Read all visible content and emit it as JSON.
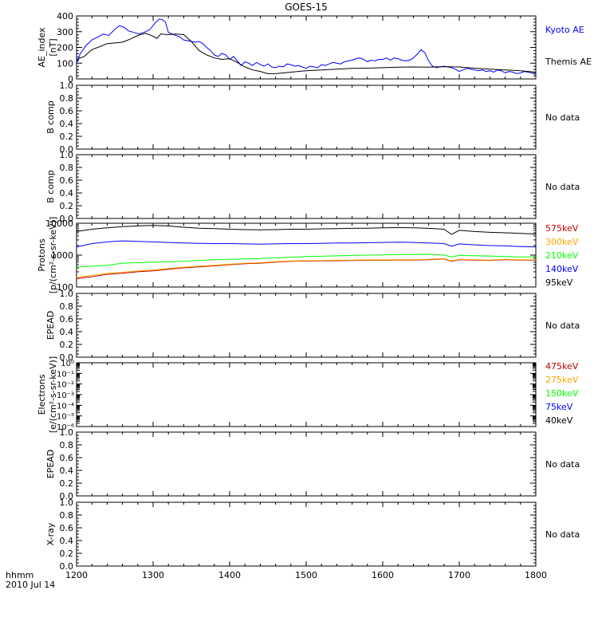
{
  "title": "GOES-15",
  "x_axis": {
    "tick_labels": [
      "1200",
      "1300",
      "1400",
      "1500",
      "1600",
      "1700",
      "1800"
    ],
    "corner_label_1": "hhmm",
    "corner_label_2": "2010 Jul 14"
  },
  "colors": {
    "axes": "#000000",
    "blue": "#0000ff",
    "black": "#000000",
    "green": "#00ff00",
    "orange": "#ffa500",
    "darkred": "#c00000"
  },
  "chart_data": [
    {
      "type": "line",
      "panel": "ae-index",
      "ylabel_line1": "AE_index",
      "ylabel_line2": "[nT]",
      "ylim": [
        0,
        420
      ],
      "yticks": [
        "0",
        "100",
        "200",
        "300",
        "400"
      ],
      "xlim": [
        1200,
        1800
      ],
      "series": [
        {
          "name": "Kyoto AE",
          "color": "#0000ff",
          "x": [
            1200,
            1205,
            1212,
            1220,
            1228,
            1235,
            1242,
            1250,
            1256,
            1262,
            1268,
            1275,
            1282,
            1290,
            1296,
            1302,
            1308,
            1312,
            1316,
            1320,
            1325,
            1330,
            1335,
            1340,
            1345,
            1350,
            1355,
            1360,
            1365,
            1370,
            1375,
            1380,
            1385,
            1390,
            1395,
            1400,
            1405,
            1410,
            1415,
            1420,
            1425,
            1430,
            1435,
            1440,
            1445,
            1450,
            1455,
            1460,
            1465,
            1470,
            1475,
            1480,
            1485,
            1490,
            1495,
            1500,
            1505,
            1510,
            1515,
            1520,
            1525,
            1530,
            1535,
            1540,
            1545,
            1550,
            1555,
            1560,
            1565,
            1570,
            1575,
            1580,
            1585,
            1590,
            1595,
            1600,
            1605,
            1610,
            1615,
            1620,
            1625,
            1630,
            1635,
            1640,
            1645,
            1650,
            1655,
            1660,
            1665,
            1670,
            1675,
            1680,
            1685,
            1690,
            1695,
            1700,
            1705,
            1710,
            1715,
            1720,
            1725,
            1730,
            1735,
            1740,
            1745,
            1750,
            1755,
            1760,
            1765,
            1770,
            1775,
            1780,
            1785,
            1790,
            1795,
            1800
          ],
          "values": [
            100,
            170,
            220,
            260,
            280,
            300,
            290,
            330,
            355,
            345,
            320,
            310,
            300,
            315,
            330,
            370,
            400,
            395,
            380,
            310,
            300,
            290,
            280,
            260,
            255,
            250,
            245,
            250,
            235,
            210,
            190,
            160,
            150,
            170,
            160,
            130,
            150,
            120,
            90,
            115,
            105,
            90,
            110,
            95,
            85,
            100,
            80,
            75,
            85,
            80,
            100,
            95,
            85,
            90,
            80,
            70,
            85,
            80,
            75,
            95,
            90,
            100,
            110,
            105,
            100,
            115,
            120,
            125,
            135,
            140,
            130,
            115,
            125,
            120,
            130,
            130,
            140,
            125,
            140,
            135,
            125,
            120,
            125,
            140,
            165,
            195,
            175,
            120,
            85,
            75,
            80,
            85,
            80,
            75,
            65,
            50,
            60,
            70,
            65,
            60,
            55,
            60,
            50,
            55,
            45,
            60,
            55,
            40,
            50,
            45,
            35,
            40,
            50,
            45,
            40,
            30
          ]
        },
        {
          "name": "Themis AE",
          "color": "#000000",
          "x": [
            1200,
            1210,
            1220,
            1230,
            1240,
            1250,
            1260,
            1270,
            1280,
            1290,
            1300,
            1305,
            1310,
            1320,
            1330,
            1340,
            1350,
            1360,
            1370,
            1380,
            1390,
            1400,
            1410,
            1420,
            1430,
            1440,
            1450,
            1460,
            1480,
            1500,
            1520,
            1540,
            1560,
            1580,
            1600,
            1620,
            1640,
            1660,
            1680,
            1700,
            1720,
            1740,
            1760,
            1780,
            1800
          ],
          "values": [
            130,
            150,
            195,
            215,
            235,
            240,
            245,
            265,
            290,
            305,
            285,
            270,
            300,
            295,
            300,
            295,
            250,
            190,
            160,
            140,
            130,
            135,
            110,
            80,
            60,
            50,
            35,
            35,
            45,
            55,
            60,
            65,
            70,
            72,
            75,
            78,
            80,
            78,
            82,
            80,
            72,
            65,
            60,
            55,
            45
          ]
        }
      ]
    },
    {
      "type": "line",
      "panel": "b-comp-1",
      "ylabel_line1": "B comp",
      "ylim": [
        0,
        1
      ],
      "yticks": [
        "0.0",
        "0.2",
        "0.4",
        "0.6",
        "0.8",
        "1.0"
      ],
      "status": "No data",
      "series": []
    },
    {
      "type": "line",
      "panel": "b-comp-2",
      "ylabel_line1": "B comp",
      "ylim": [
        0,
        1
      ],
      "yticks": [
        "0.0",
        "0.2",
        "0.4",
        "0.6",
        "0.8",
        "1.0"
      ],
      "status": "No data",
      "series": []
    },
    {
      "type": "line",
      "panel": "protons",
      "ylabel_line1": "Protons",
      "ylabel_line2": "[p/(cm²-s-sr-keV)]",
      "ylim": [
        100,
        10000
      ],
      "log_scale": true,
      "yticks": [
        "100",
        "1000",
        "10000"
      ],
      "xlim": [
        1200,
        1800
      ],
      "series": [
        {
          "name": "575keV",
          "color": "#c00000",
          "x": [
            1200,
            1210,
            1220,
            1230,
            1240,
            1260,
            1280,
            1300,
            1320,
            1340,
            1360,
            1380,
            1400,
            1420,
            1440,
            1460,
            1480,
            1500,
            1520,
            1540,
            1560,
            1580,
            1600,
            1620,
            1640,
            1660,
            1680,
            1690,
            1700,
            1720,
            1740,
            1760,
            1780,
            1800
          ],
          "values": [
            180,
            200,
            210,
            230,
            250,
            270,
            300,
            320,
            360,
            400,
            430,
            460,
            500,
            540,
            560,
            600,
            640,
            650,
            660,
            670,
            680,
            690,
            690,
            700,
            700,
            720,
            760,
            640,
            720,
            700,
            680,
            720,
            700,
            700
          ]
        },
        {
          "name": "300keV",
          "color": "#ffa500",
          "x": [
            1200,
            1210,
            1220,
            1230,
            1240,
            1260,
            1280,
            1300,
            1320,
            1340,
            1360,
            1380,
            1400,
            1420,
            1440,
            1460,
            1480,
            1500,
            1520,
            1540,
            1560,
            1580,
            1600,
            1620,
            1640,
            1660,
            1680,
            1690,
            1700,
            1720,
            1740,
            1760,
            1780,
            1800
          ],
          "values": [
            200,
            215,
            230,
            250,
            270,
            290,
            320,
            340,
            380,
            420,
            450,
            480,
            520,
            560,
            580,
            620,
            660,
            670,
            680,
            690,
            700,
            710,
            710,
            720,
            720,
            740,
            780,
            660,
            740,
            720,
            700,
            740,
            720,
            720
          ]
        },
        {
          "name": "210keV",
          "color": "#00ff00",
          "x": [
            1200,
            1220,
            1240,
            1260,
            1280,
            1300,
            1320,
            1340,
            1360,
            1380,
            1400,
            1420,
            1440,
            1460,
            1480,
            1500,
            1520,
            1540,
            1560,
            1580,
            1600,
            1620,
            1640,
            1660,
            1680,
            1690,
            1700,
            1720,
            1740,
            1760,
            1780,
            1800
          ],
          "values": [
            420,
            450,
            480,
            560,
            580,
            600,
            620,
            640,
            680,
            720,
            740,
            760,
            780,
            820,
            860,
            900,
            920,
            950,
            980,
            1000,
            1020,
            1040,
            1050,
            1060,
            1000,
            880,
            980,
            960,
            940,
            900,
            880,
            880
          ]
        },
        {
          "name": "140keV",
          "color": "#0000ff",
          "x": [
            1200,
            1220,
            1240,
            1260,
            1280,
            1300,
            1320,
            1340,
            1360,
            1380,
            1400,
            1420,
            1440,
            1460,
            1480,
            1500,
            1520,
            1540,
            1560,
            1580,
            1600,
            1620,
            1640,
            1660,
            1680,
            1690,
            1700,
            1720,
            1740,
            1760,
            1780,
            1800
          ],
          "values": [
            1800,
            2300,
            2600,
            2800,
            2700,
            2600,
            2500,
            2400,
            2350,
            2300,
            2300,
            2250,
            2200,
            2250,
            2300,
            2300,
            2350,
            2400,
            2400,
            2450,
            2500,
            2550,
            2500,
            2400,
            2300,
            1900,
            2250,
            2100,
            2000,
            1950,
            1850,
            1800
          ]
        },
        {
          "name": "95keV",
          "color": "#000000",
          "x": [
            1200,
            1220,
            1240,
            1260,
            1280,
            1300,
            1320,
            1340,
            1360,
            1380,
            1400,
            1420,
            1440,
            1460,
            1480,
            1500,
            1520,
            1540,
            1560,
            1580,
            1600,
            1620,
            1640,
            1660,
            1680,
            1690,
            1700,
            1720,
            1740,
            1760,
            1780,
            1800
          ],
          "values": [
            5500,
            6500,
            7200,
            7800,
            8200,
            8500,
            8200,
            7500,
            7000,
            6800,
            6500,
            6300,
            6200,
            6300,
            6500,
            6500,
            6700,
            6800,
            6900,
            7000,
            7200,
            7300,
            7200,
            6900,
            6500,
            4500,
            6000,
            5500,
            5200,
            5000,
            4800,
            4600
          ]
        }
      ]
    },
    {
      "type": "line",
      "panel": "epead-1",
      "ylabel_line1": "EPEAD",
      "ylim": [
        0,
        1
      ],
      "yticks": [
        "0.0",
        "0.2",
        "0.4",
        "0.6",
        "0.8",
        "1.0"
      ],
      "status": "No data",
      "series": []
    },
    {
      "type": "line",
      "panel": "electrons",
      "ylabel_line1": "Electrons",
      "ylabel_line2": "[e/(cm²-s-sr-keV)]",
      "log_scale": true,
      "ylim_exponents": [
        -6,
        0
      ],
      "yticks": [
        "10⁰",
        "10⁻¹",
        "10⁻²",
        "10⁻³",
        "10⁻⁴",
        "10⁻⁵",
        "10⁻⁶"
      ],
      "legend": [
        {
          "name": "475keV",
          "color": "#c00000"
        },
        {
          "name": "275keV",
          "color": "#ffa500"
        },
        {
          "name": "150keV",
          "color": "#00ff00"
        },
        {
          "name": "75keV",
          "color": "#0000ff"
        },
        {
          "name": "40keV",
          "color": "#000000"
        }
      ],
      "series": []
    },
    {
      "type": "line",
      "panel": "epead-2",
      "ylabel_line1": "EPEAD",
      "ylim": [
        0,
        1
      ],
      "yticks": [
        "0.0",
        "0.2",
        "0.4",
        "0.6",
        "0.8",
        "1.0"
      ],
      "status": "No data",
      "series": []
    },
    {
      "type": "line",
      "panel": "x-ray",
      "ylabel_line1": "X-ray",
      "ylim": [
        0,
        1
      ],
      "yticks": [
        "0.0",
        "0.2",
        "0.4",
        "0.6",
        "0.8",
        "1.0"
      ],
      "status": "No data",
      "series": []
    }
  ]
}
